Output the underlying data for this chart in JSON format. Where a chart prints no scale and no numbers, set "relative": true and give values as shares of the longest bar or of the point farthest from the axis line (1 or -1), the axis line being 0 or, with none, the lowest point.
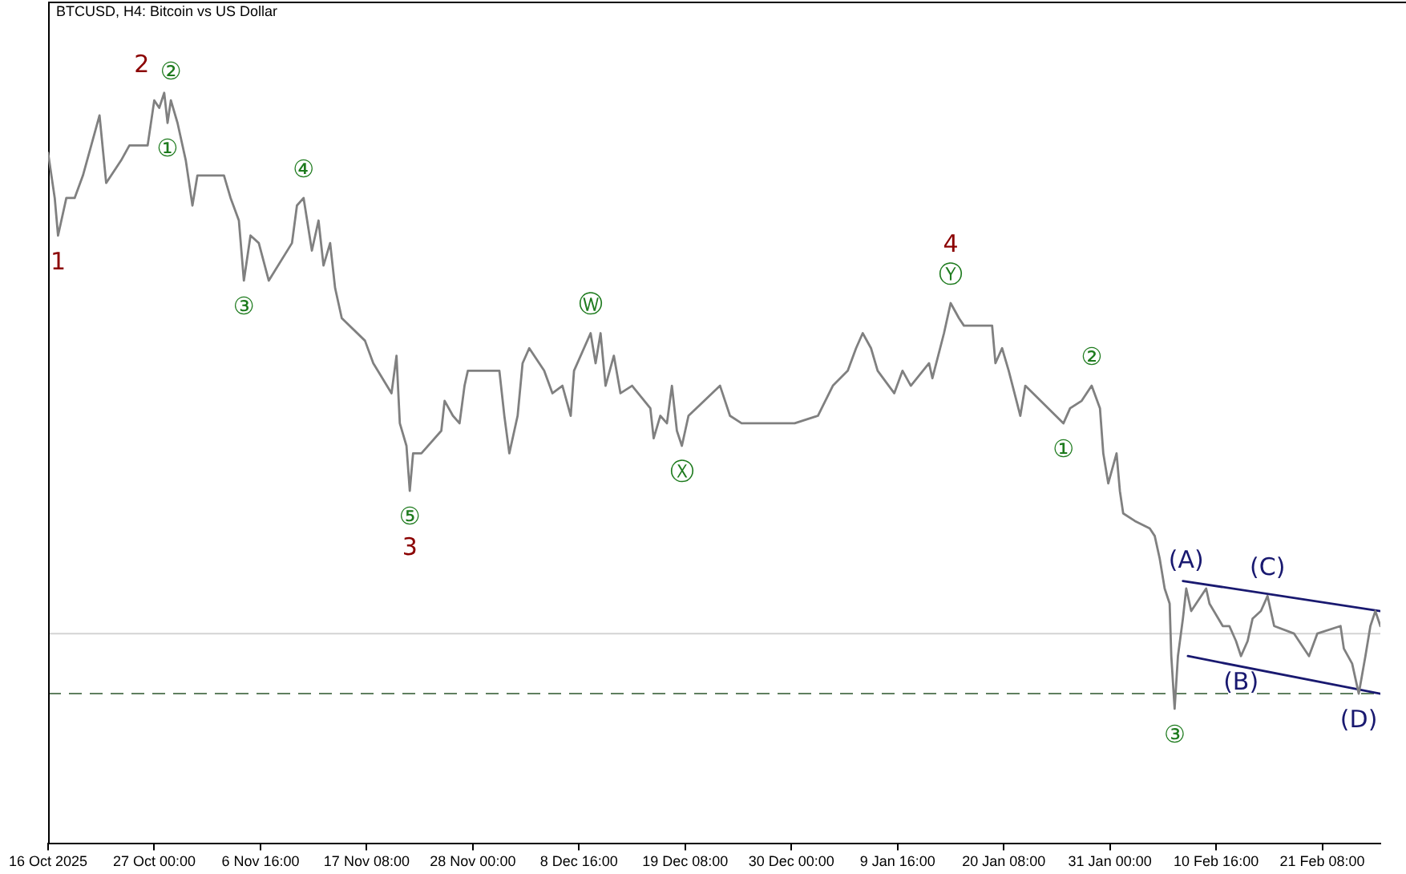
{
  "chart_data": {
    "type": "line",
    "title": "BTCUSD, H4: Bitcoin vs US Dollar",
    "relative": true,
    "x": [
      "2025-10-16T08:00",
      "2025-10-17T00:00",
      "2025-10-17T08:00",
      "2025-10-18T04:00",
      "2025-10-19T00:00",
      "2025-10-19T20:00",
      "2025-10-20T16:00",
      "2025-10-21T12:00",
      "2025-10-22T04:00",
      "2025-10-23T16:00",
      "2025-10-24T12:00",
      "2025-10-26T08:00",
      "2025-10-27T00:00",
      "2025-10-27T12:00",
      "2025-10-28T00:00",
      "2025-10-28T08:00",
      "2025-10-28T16:00",
      "2025-10-29T08:00",
      "2025-10-30T04:00",
      "2025-10-30T20:00",
      "2025-10-31T08:00",
      "2025-11-03T00:00",
      "2025-11-03T16:00",
      "2025-11-04T12:00",
      "2025-11-05T00:00",
      "2025-11-05T16:00",
      "2025-11-06T12:00",
      "2025-11-07T12:00",
      "2025-11-09T20:00",
      "2025-11-10T08:00",
      "2025-11-11T00:00",
      "2025-11-11T20:00",
      "2025-11-12T12:00",
      "2025-11-13T00:00",
      "2025-11-13T16:00",
      "2025-11-14T04:00",
      "2025-11-14T20:00",
      "2025-11-17T04:00",
      "2025-11-18T00:00",
      "2025-11-19T20:00",
      "2025-11-20T08:00",
      "2025-11-20T16:00",
      "2025-11-21T08:00",
      "2025-11-21T16:00",
      "2025-11-22T00:00",
      "2025-11-22T20:00",
      "2025-11-24T20:00",
      "2025-11-25T04:00",
      "2025-11-26T00:00",
      "2025-11-26T16:00",
      "2025-11-27T04:00",
      "2025-11-27T12:00",
      "2025-11-30T16:00",
      "2025-12-01T04:00",
      "2025-12-01T16:00",
      "2025-12-02T12:00",
      "2025-12-03T00:00",
      "2025-12-03T16:00",
      "2025-12-05T04:00",
      "2025-12-06T00:00",
      "2025-12-07T00:00",
      "2025-12-07T20:00",
      "2025-12-08T04:00",
      "2025-12-09T20:00",
      "2025-12-10T08:00",
      "2025-12-10T20:00",
      "2025-12-11T08:00",
      "2025-12-12T04:00",
      "2025-12-12T20:00",
      "2025-12-14T00:00",
      "2025-12-15T20:00",
      "2025-12-16T04:00",
      "2025-12-16T20:00",
      "2025-12-17T12:00",
      "2025-12-18T00:00",
      "2025-12-18T12:00",
      "2025-12-19T00:00",
      "2025-12-19T16:00",
      "2025-12-22T20:00",
      "2025-12-23T20:00",
      "2025-12-25T00:00",
      "2025-12-27T08:00",
      "2025-12-30T08:00",
      "2026-01-01T16:00",
      "2026-01-03T04:00",
      "2026-01-04T16:00",
      "2026-01-05T12:00",
      "2026-01-06T04:00",
      "2026-01-07T00:00",
      "2026-01-07T16:00",
      "2026-01-09T08:00",
      "2026-01-10T04:00",
      "2026-01-11T00:00",
      "2026-01-12T20:00",
      "2026-01-13T04:00",
      "2026-01-14T08:00",
      "2026-01-15T00:00",
      "2026-01-15T20:00",
      "2026-01-16T08:00",
      "2026-01-19T04:00",
      "2026-01-19T12:00",
      "2026-01-20T04:00",
      "2026-01-20T20:00",
      "2026-01-22T00:00",
      "2026-01-22T12:00",
      "2026-01-26T08:00",
      "2026-01-27T00:00",
      "2026-01-28T04:00",
      "2026-01-29T04:00",
      "2026-01-30T00:00",
      "2026-01-30T08:00",
      "2026-01-30T20:00",
      "2026-01-31T16:00",
      "2026-02-01T00:00",
      "2026-02-01T08:00",
      "2026-02-02T12:00",
      "2026-02-04T00:00",
      "2026-02-04T12:00",
      "2026-02-05T00:00",
      "2026-02-05T12:00",
      "2026-02-06T00:00",
      "2026-02-06T04:00",
      "2026-02-06T12:00",
      "2026-02-06T20:00",
      "2026-02-07T08:00",
      "2026-02-07T16:00",
      "2026-02-08T04:00",
      "2026-02-09T16:00",
      "2026-02-10T00:00",
      "2026-02-11T08:00",
      "2026-02-12T00:00",
      "2026-02-12T16:00",
      "2026-02-13T04:00",
      "2026-02-13T20:00",
      "2026-02-14T08:00",
      "2026-02-15T04:00",
      "2026-02-15T20:00",
      "2026-02-16T12:00",
      "2026-02-18T12:00",
      "2026-02-20T00:00",
      "2026-02-20T20:00",
      "2026-02-23T04:00",
      "2026-02-23T12:00",
      "2026-02-24T08:00",
      "2026-02-25T00:00",
      "2026-02-25T16:00",
      "2026-02-26T04:00",
      "2026-02-26T16:00",
      "2026-02-27T04:00"
    ],
    "series": [
      {
        "color": "#808080",
        "values": [
          0.92,
          0.86,
          0.81,
          0.86,
          0.86,
          0.89,
          0.93,
          0.97,
          0.88,
          0.91,
          0.93,
          0.93,
          0.99,
          0.98,
          1.0,
          0.96,
          0.99,
          0.96,
          0.91,
          0.85,
          0.89,
          0.89,
          0.86,
          0.83,
          0.75,
          0.81,
          0.8,
          0.75,
          0.8,
          0.85,
          0.86,
          0.79,
          0.83,
          0.77,
          0.8,
          0.74,
          0.7,
          0.67,
          0.64,
          0.6,
          0.65,
          0.56,
          0.53,
          0.47,
          0.52,
          0.52,
          0.55,
          0.59,
          0.57,
          0.56,
          0.61,
          0.63,
          0.63,
          0.57,
          0.52,
          0.57,
          0.64,
          0.66,
          0.63,
          0.6,
          0.61,
          0.57,
          0.63,
          0.68,
          0.64,
          0.68,
          0.61,
          0.65,
          0.6,
          0.61,
          0.58,
          0.54,
          0.57,
          0.56,
          0.61,
          0.55,
          0.53,
          0.57,
          0.61,
          0.57,
          0.56,
          0.56,
          0.56,
          0.57,
          0.61,
          0.63,
          0.66,
          0.68,
          0.66,
          0.63,
          0.6,
          0.63,
          0.61,
          0.64,
          0.62,
          0.68,
          0.72,
          0.7,
          0.69,
          0.69,
          0.64,
          0.66,
          0.63,
          0.57,
          0.61,
          0.56,
          0.58,
          0.59,
          0.61,
          0.58,
          0.52,
          0.48,
          0.52,
          0.47,
          0.44,
          0.43,
          0.42,
          0.41,
          0.38,
          0.34,
          0.32,
          0.25,
          0.18,
          0.25,
          0.3,
          0.34,
          0.31,
          0.34,
          0.32,
          0.29,
          0.29,
          0.27,
          0.25,
          0.27,
          0.3,
          0.31,
          0.33,
          0.29,
          0.28,
          0.25,
          0.28,
          0.29,
          0.26,
          0.24,
          0.2,
          0.25,
          0.29,
          0.31,
          0.29
        ]
      },
      {
        "type": "line",
        "color": "#191970",
        "x": [
          "2026-02-07T08:00",
          "2026-02-27T04:00"
        ],
        "values": [
          0.35,
          0.31
        ]
      },
      {
        "type": "line",
        "color": "#191970",
        "x": [
          "2026-02-07T20:00",
          "2026-02-27T04:00"
        ],
        "values": [
          0.25,
          0.2
        ]
      }
    ],
    "xlim": [
      "2025-10-16T08:00",
      "2026-02-27T04:00"
    ],
    "xticks": [
      {
        "value": "2025-10-16T08:00",
        "label": "16 Oct 2025"
      },
      {
        "value": "2025-10-27T00:00",
        "label": "27 Oct 00:00"
      },
      {
        "value": "2025-11-06T16:00",
        "label": "6 Nov 16:00"
      },
      {
        "value": "2025-11-17T08:00",
        "label": "17 Nov 08:00"
      },
      {
        "value": "2025-11-28T00:00",
        "label": "28 Nov 00:00"
      },
      {
        "value": "2025-12-08T16:00",
        "label": "8 Dec 16:00"
      },
      {
        "value": "2025-12-19T08:00",
        "label": "19 Dec 08:00"
      },
      {
        "value": "2025-12-30T00:00",
        "label": "30 Dec 00:00"
      },
      {
        "value": "2026-01-09T16:00",
        "label": "9 Jan 16:00"
      },
      {
        "value": "2026-01-20T08:00",
        "label": "20 Jan 08:00"
      },
      {
        "value": "2026-01-31T00:00",
        "label": "31 Jan 00:00"
      },
      {
        "value": "2026-02-10T16:00",
        "label": "10 Feb 16:00"
      },
      {
        "value": "2026-02-21T08:00",
        "label": "21 Feb 08:00"
      }
    ],
    "ref_lines": [
      {
        "axis": "y",
        "value": 0.28,
        "color": "#d3d3d3"
      },
      {
        "axis": "y",
        "value": 0.2,
        "color": "#5f7f5f",
        "line_style": "dashed"
      }
    ],
    "annotations": [
      {
        "text": "1",
        "x": "2025-10-17T08:00",
        "y": 0.81
      },
      {
        "text": "①",
        "x": "2025-10-28T08:00",
        "y": 0.96
      },
      {
        "text": "②",
        "x": "2025-10-28T16:00",
        "y": 0.99
      },
      {
        "text": "2",
        "x": "2025-10-28T00:00",
        "y": 1.0
      },
      {
        "text": "③",
        "x": "2025-11-05T00:00",
        "y": 0.75
      },
      {
        "text": "④",
        "x": "2025-11-11T00:00",
        "y": 0.86
      },
      {
        "text": "⑤",
        "x": "2025-11-21T16:00",
        "y": 0.47
      },
      {
        "text": "3",
        "x": "2025-11-21T16:00",
        "y": 0.47
      },
      {
        "text": "Ⓦ",
        "x": "2025-12-09T20:00",
        "y": 0.68
      },
      {
        "text": "Ⓧ",
        "x": "2025-12-19T00:00",
        "y": 0.53
      },
      {
        "text": "Ⓨ",
        "x": "2026-01-15T00:00",
        "y": 0.72
      },
      {
        "text": "4",
        "x": "2026-01-15T00:00",
        "y": 0.72
      },
      {
        "text": "①",
        "x": "2026-01-26T08:00",
        "y": 0.56
      },
      {
        "text": "②",
        "x": "2026-01-29T04:00",
        "y": 0.61
      },
      {
        "text": "③",
        "x": "2026-02-06T12:00",
        "y": 0.18
      },
      {
        "text": "(A)",
        "x": "2026-02-07T16:00",
        "y": 0.34
      },
      {
        "text": "(B)",
        "x": "2026-02-13T04:00",
        "y": 0.25
      },
      {
        "text": "(C)",
        "x": "2026-02-15T20:00",
        "y": 0.33
      },
      {
        "text": "(D)",
        "x": "2026-02-25T00:00",
        "y": 0.2
      }
    ]
  }
}
